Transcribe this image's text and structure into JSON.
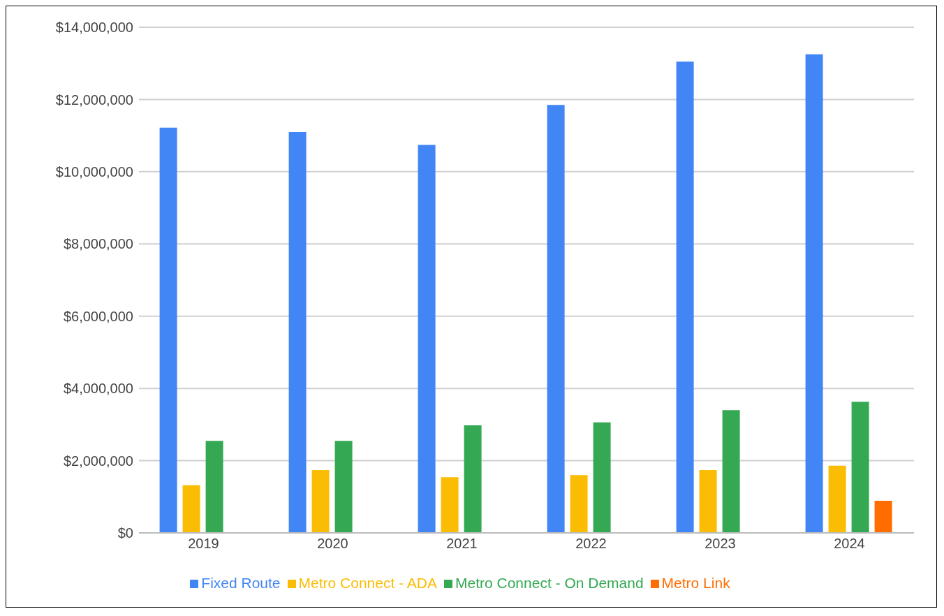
{
  "chart_data": {
    "type": "bar",
    "categories": [
      "2019",
      "2020",
      "2021",
      "2022",
      "2023",
      "2024"
    ],
    "series": [
      {
        "name": "Fixed Route",
        "color": "#4285f4",
        "values": [
          11220000,
          11100000,
          10740000,
          11850000,
          13050000,
          13250000
        ]
      },
      {
        "name": "Metro Connect - ADA",
        "color": "#fbbc04",
        "values": [
          1320000,
          1740000,
          1540000,
          1600000,
          1740000,
          1860000
        ]
      },
      {
        "name": "Metro Connect - On Demand",
        "color": "#34a853",
        "values": [
          2550000,
          2550000,
          2980000,
          3060000,
          3400000,
          3630000
        ]
      },
      {
        "name": "Metro Link",
        "color": "#ff6d01",
        "values": [
          null,
          null,
          null,
          null,
          null,
          890000
        ]
      }
    ],
    "ylim": [
      0,
      14000000
    ],
    "yticks": [
      {
        "value": 0,
        "label": "$0"
      },
      {
        "value": 2000000,
        "label": "$2,000,000"
      },
      {
        "value": 4000000,
        "label": "$4,000,000"
      },
      {
        "value": 6000000,
        "label": "$6,000,000"
      },
      {
        "value": 8000000,
        "label": "$8,000,000"
      },
      {
        "value": 10000000,
        "label": "$10,000,000"
      },
      {
        "value": 12000000,
        "label": "$12,000,000"
      },
      {
        "value": 14000000,
        "label": "$14,000,000"
      }
    ],
    "grid": "y",
    "legend": "bottom"
  }
}
